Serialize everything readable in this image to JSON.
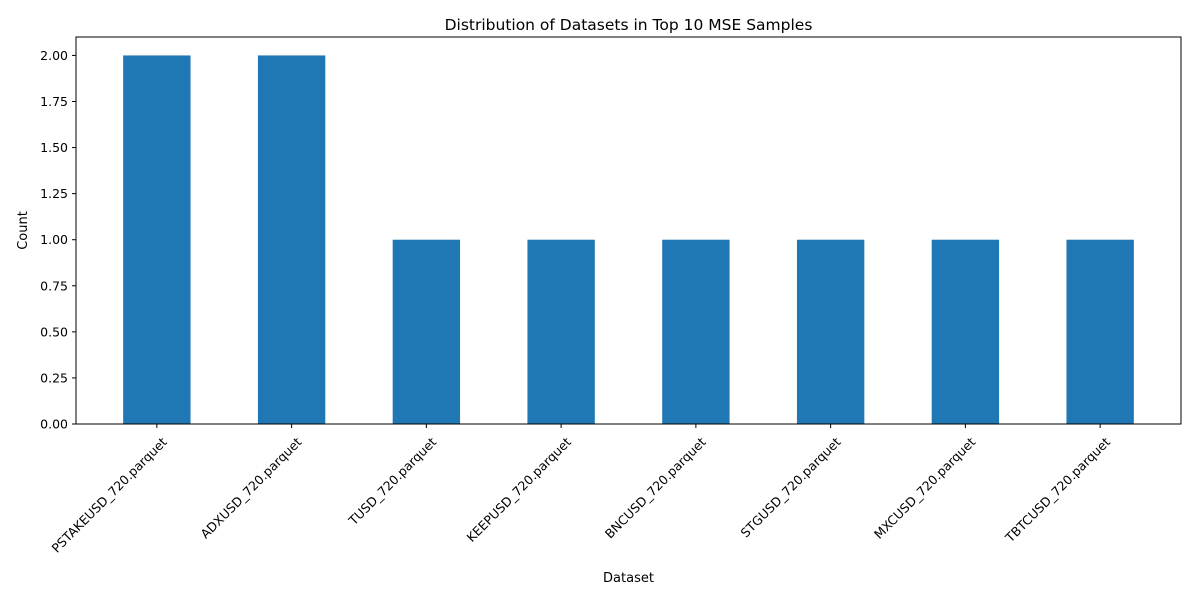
{
  "chart_data": {
    "type": "bar",
    "title": "Distribution of Datasets in Top 10 MSE Samples",
    "xlabel": "Dataset",
    "ylabel": "Count",
    "categories": [
      "PSTAKEUSD_720.parquet",
      "ADXUSD_720.parquet",
      "TUSD_720.parquet",
      "KEEPUSD_720.parquet",
      "BNCUSD_720.parquet",
      "STGUSD_720.parquet",
      "MXCUSD_720.parquet",
      "TBTCUSD_720.parquet"
    ],
    "values": [
      2,
      2,
      1,
      1,
      1,
      1,
      1,
      1
    ],
    "ylim": [
      0,
      2.1
    ],
    "yticks": [
      0.0,
      0.25,
      0.5,
      0.75,
      1.0,
      1.25,
      1.5,
      1.75,
      2.0
    ],
    "ytick_labels": [
      "0.00",
      "0.25",
      "0.50",
      "0.75",
      "1.00",
      "1.25",
      "1.50",
      "1.75",
      "2.00"
    ],
    "xtick_rotation_deg": 45,
    "grid": false,
    "legend": "none",
    "bar_color": "#1f77b4"
  }
}
